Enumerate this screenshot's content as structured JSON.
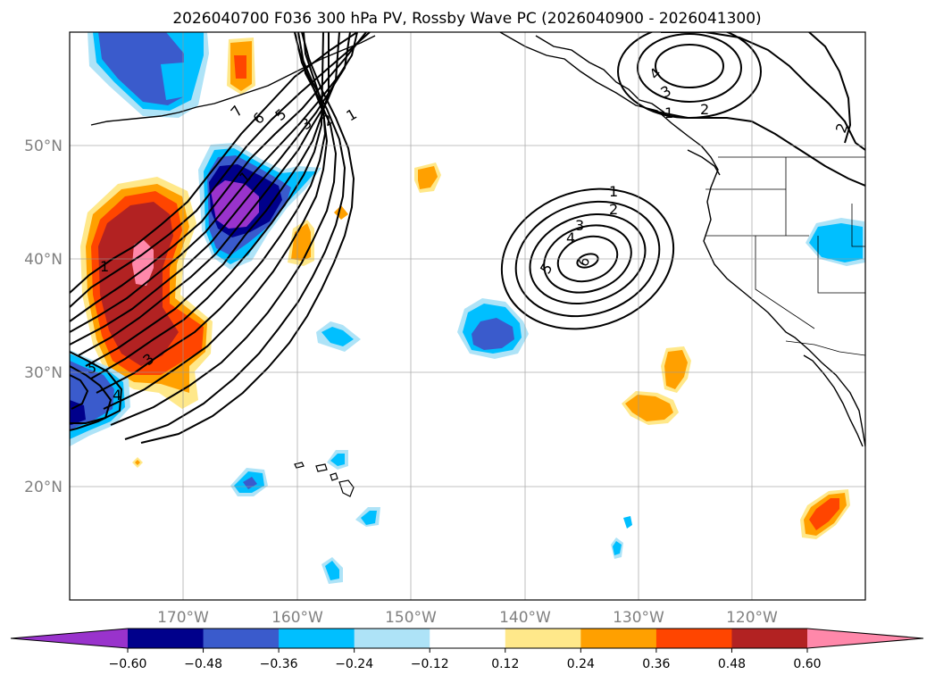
{
  "title": "2026040700 F036 300 hPa PV, Rossby Wave PC (2026040900 - 2026041300)",
  "map": {
    "lat_labels": [
      "50°N",
      "40°N",
      "30°N",
      "20°N"
    ],
    "lon_labels": [
      "170°W",
      "160°W",
      "150°W",
      "140°W",
      "130°W",
      "120°W"
    ]
  },
  "colorbar": {
    "tick_labels": [
      "−0.60",
      "−0.48",
      "−0.36",
      "−0.24",
      "−0.12",
      "0.12",
      "0.24",
      "0.36",
      "0.48",
      "0.60"
    ],
    "levels": [
      -0.6,
      -0.48,
      -0.36,
      -0.24,
      -0.12,
      0.12,
      0.24,
      0.36,
      0.48,
      0.6
    ],
    "colors": [
      "#9933cc",
      "#00008b",
      "#3a5bcc",
      "#00bfff",
      "#aee3f7",
      "#ffffff",
      "#ffe88a",
      "#ffa000",
      "#ff4500",
      "#b22222",
      "#ff88aa"
    ]
  },
  "contour_labels": {
    "west": [
      "7",
      "6",
      "5",
      "3",
      "2",
      "1",
      "1",
      "3",
      "5",
      "4",
      "1"
    ],
    "center": [
      "1",
      "2",
      "3",
      "4",
      "5",
      "6"
    ],
    "northeast": [
      "4",
      "3",
      "2",
      "1",
      "2"
    ]
  }
}
